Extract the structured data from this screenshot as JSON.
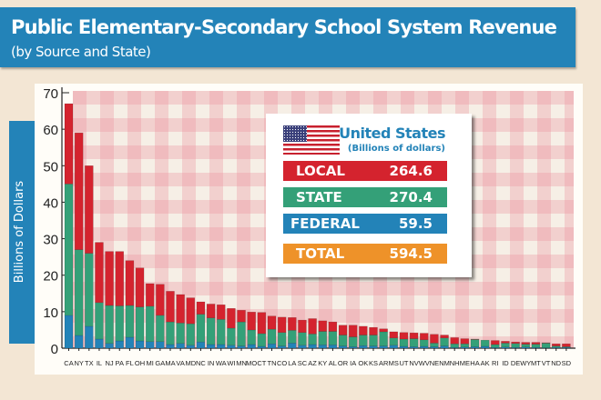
{
  "header": {
    "title": "Public Elementary-Secondary School System Revenue",
    "subtitle": "(by Source and State)"
  },
  "legend": {
    "title": "United States",
    "subtitle": "(Billions of dollars)",
    "flag_icon": "us-flag-icon",
    "rows": [
      {
        "label": "LOCAL",
        "value": "264.6",
        "color": "#d4232e"
      },
      {
        "label": "STATE",
        "value": "270.4",
        "color": "#34a078"
      },
      {
        "label": "FEDERAL",
        "value": "59.5",
        "color": "#2383b8"
      },
      {
        "label": "TOTAL",
        "value": "594.5",
        "color": "#ee9229"
      }
    ]
  },
  "chart_data": {
    "type": "bar",
    "stacked": true,
    "ylabel": "Billions of Dollars",
    "ylim": [
      0,
      70
    ],
    "yticks": [
      0,
      10,
      20,
      30,
      40,
      50,
      60,
      70
    ],
    "categories": [
      "CA",
      "NY",
      "TX",
      "IL",
      "NJ",
      "PA",
      "FL",
      "OH",
      "MI",
      "GA",
      "MA",
      "VA",
      "MD",
      "NC",
      "IN",
      "WA",
      "WI",
      "MN",
      "MO",
      "CT",
      "TN",
      "CO",
      "LA",
      "SC",
      "AZ",
      "KY",
      "AL",
      "OR",
      "IA",
      "OK",
      "KS",
      "AR",
      "MS",
      "UT",
      "NV",
      "WV",
      "NE",
      "NM",
      "NH",
      "ME",
      "HA",
      "AK",
      "RI",
      "ID",
      "DE",
      "WY",
      "MT",
      "VT",
      "ND",
      "SD"
    ],
    "series": [
      {
        "name": "FEDERAL",
        "color": "#2383b8",
        "values": [
          9,
          3.5,
          6,
          2.5,
          1.3,
          2,
          3,
          2,
          1.8,
          1.8,
          1,
          1.3,
          0.8,
          1.7,
          1,
          1,
          0.8,
          0.6,
          1,
          0.5,
          1.2,
          0.6,
          1.4,
          0.8,
          1,
          0.9,
          0.9,
          0.6,
          0.4,
          0.7,
          0.6,
          0.6,
          0.8,
          0.5,
          0.4,
          0.5,
          0.4,
          0.6,
          0.2,
          0.3,
          0.4,
          0.5,
          0.2,
          0.3,
          0.2,
          0.3,
          0.2,
          0.1,
          0.2,
          0.2
        ]
      },
      {
        "name": "STATE",
        "color": "#34a078",
        "values": [
          36,
          23.5,
          20,
          10,
          10.4,
          9.6,
          8.7,
          9.3,
          9.7,
          7.2,
          6.2,
          5.6,
          5.9,
          7.6,
          7.3,
          6.9,
          4.7,
          6.6,
          4,
          3.5,
          4,
          3.7,
          3.5,
          3.5,
          2.9,
          3.7,
          3.7,
          3,
          2.7,
          2.9,
          3,
          3.9,
          2,
          2,
          2.2,
          1.8,
          1,
          2.2,
          1,
          0.9,
          2,
          1.7,
          0.8,
          1.1,
          1.1,
          0.8,
          0.9,
          1.3,
          0.4,
          0.2
        ]
      },
      {
        "name": "LOCAL",
        "color": "#d4232e",
        "values": [
          22,
          32,
          24,
          16.5,
          14.8,
          14.9,
          12.3,
          10.7,
          6.2,
          8.5,
          8.4,
          7.8,
          7.1,
          3.4,
          3.8,
          4,
          5.4,
          3.2,
          4.9,
          5.8,
          3.6,
          4.2,
          3.5,
          3.4,
          4.2,
          2.9,
          2.6,
          2.7,
          3.2,
          2.4,
          2.1,
          0.8,
          1.7,
          1.8,
          1.6,
          1.8,
          2.4,
          0.8,
          1.7,
          1.4,
          0.1,
          0,
          1.1,
          0.5,
          0.4,
          0.5,
          0.5,
          0.1,
          0.6,
          0.8
        ]
      }
    ],
    "grid": false,
    "legend": "top-right"
  }
}
